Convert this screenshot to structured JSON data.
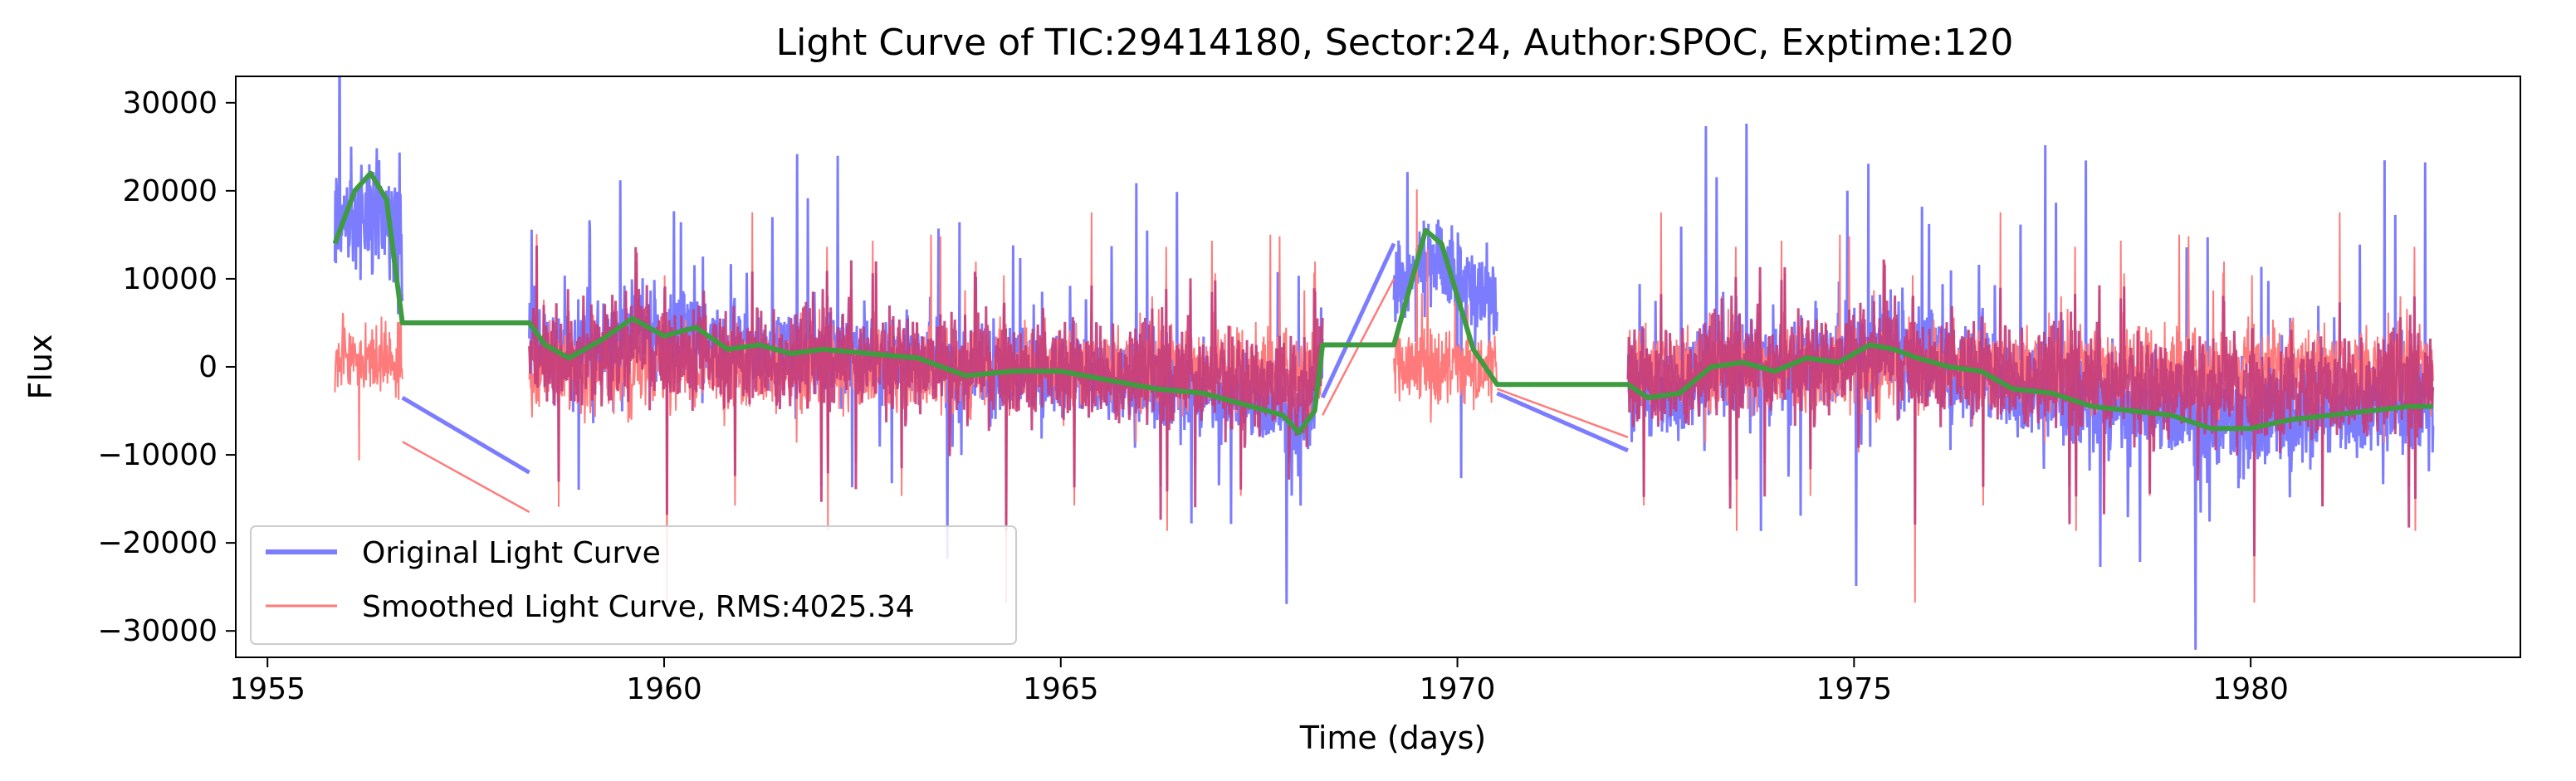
{
  "chart_data": {
    "type": "line",
    "title": "Light Curve of TIC:29414180, Sector:24, Author:SPOC, Exptime:120",
    "xlabel": "Time (days)",
    "ylabel": "Flux",
    "xlim": [
      1954.6,
      1983.4
    ],
    "ylim": [
      -33000,
      33000
    ],
    "xticks": [
      1955,
      1960,
      1965,
      1970,
      1975,
      1980
    ],
    "yticks": [
      -30000,
      -20000,
      -10000,
      0,
      10000,
      20000,
      30000
    ],
    "grid": false,
    "legend_position": "lower-left",
    "segments": [
      {
        "start": 1955.85,
        "end": 1956.7,
        "orig_base": 16000,
        "orig_amp": 6000,
        "smooth_base": 1000,
        "smooth_amp": 3500
      },
      {
        "start": 1958.3,
        "end": 1968.3,
        "orig_base": 0,
        "orig_amp": 4500,
        "smooth_base": 0,
        "smooth_amp": 4500
      },
      {
        "start": 1969.2,
        "end": 1970.5,
        "orig_base": 11000,
        "orig_amp": 4500,
        "smooth_base": 0,
        "smooth_amp": 4000
      },
      {
        "start": 1972.15,
        "end": 1982.3,
        "orig_base": -2500,
        "orig_amp": 5500,
        "smooth_base": 0,
        "smooth_amp": 4500
      }
    ],
    "gap_lines": {
      "original": [
        [
          1956.7,
          -3500
        ],
        [
          1958.3,
          -12000
        ],
        [
          1968.3,
          -3500
        ],
        [
          1969.2,
          14000
        ],
        [
          1970.5,
          -3000
        ],
        [
          1972.15,
          -9500
        ]
      ],
      "smoothed": [
        [
          1956.7,
          -8500
        ],
        [
          1958.3,
          -16500
        ],
        [
          1968.3,
          -5500
        ],
        [
          1969.2,
          10000
        ],
        [
          1970.5,
          -2500
        ],
        [
          1972.15,
          -8000
        ]
      ]
    },
    "trend": {
      "x": [
        1955.85,
        1956.1,
        1956.3,
        1956.5,
        1956.7,
        1958.3,
        1958.5,
        1958.8,
        1959.2,
        1959.6,
        1960.0,
        1960.4,
        1960.8,
        1961.2,
        1961.6,
        1962.0,
        1962.6,
        1963.2,
        1963.8,
        1964.4,
        1965.0,
        1965.6,
        1966.2,
        1966.8,
        1967.4,
        1967.8,
        1968.0,
        1968.2,
        1968.3,
        1969.2,
        1969.4,
        1969.6,
        1969.8,
        1970.0,
        1970.2,
        1970.5,
        1972.15,
        1972.4,
        1972.8,
        1973.2,
        1973.6,
        1974.0,
        1974.4,
        1974.8,
        1975.2,
        1975.5,
        1975.8,
        1976.2,
        1976.6,
        1977.0,
        1977.5,
        1978.0,
        1978.5,
        1979.0,
        1979.5,
        1980.0,
        1980.5,
        1981.0,
        1981.5,
        1982.0,
        1982.3
      ],
      "y": [
        14000,
        20000,
        22000,
        19000,
        5000,
        5000,
        2500,
        1000,
        3000,
        5500,
        3500,
        4500,
        2000,
        2500,
        1500,
        2000,
        1500,
        1000,
        -1000,
        -500,
        -500,
        -1500,
        -2500,
        -3000,
        -4500,
        -5500,
        -7500,
        -5000,
        2500,
        2500,
        9000,
        15500,
        14000,
        8000,
        2000,
        -2000,
        -2000,
        -3500,
        -3000,
        0,
        500,
        -500,
        1000,
        500,
        2500,
        2000,
        1000,
        0,
        -500,
        -2500,
        -3000,
        -4500,
        -5000,
        -5500,
        -7000,
        -7000,
        -6000,
        -5500,
        -5000,
        -4500,
        -4500
      ]
    },
    "series": [
      {
        "name": "Original Light Curve",
        "color": "#7c7cff",
        "type": "line"
      },
      {
        "name": "Smoothed Light Curve, RMS:4025.34",
        "color": "#ff7b7b",
        "type": "line"
      },
      {
        "color": "#3f9b3f",
        "type": "line"
      }
    ],
    "colors": {
      "overlap": "#c43c7a",
      "axis": "#000000"
    }
  }
}
